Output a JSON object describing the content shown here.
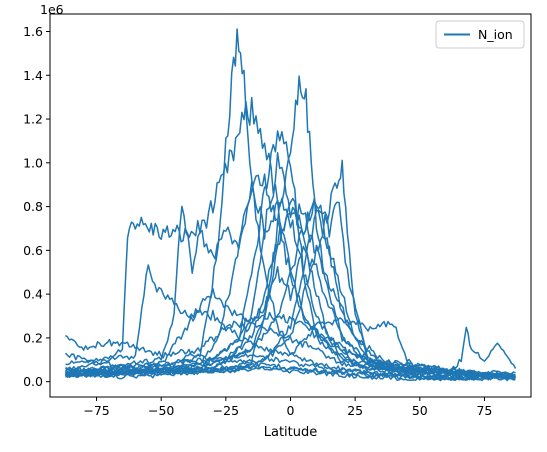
{
  "chart_data": {
    "type": "line",
    "xlabel": "Latitude",
    "ylabel": "",
    "y_offset_label": "1e6",
    "xlim": [
      -93,
      93
    ],
    "ylim": [
      -70000,
      1680000
    ],
    "xticks": [
      -75,
      -50,
      -25,
      0,
      25,
      50,
      75
    ],
    "xtick_labels": [
      "−75",
      "−50",
      "−25",
      "0",
      "25",
      "50",
      "75"
    ],
    "yticks": [
      0,
      200000,
      400000,
      600000,
      800000,
      1000000,
      1200000,
      1400000,
      1600000
    ],
    "ytick_labels": [
      "0.0",
      "0.2",
      "0.4",
      "0.6",
      "0.8",
      "1.0",
      "1.2",
      "1.4",
      "1.6"
    ],
    "grid": false,
    "legend_position": "upper right",
    "series": [
      {
        "name": "N_ion",
        "color": "#1f77b4",
        "traces": [
          {
            "x": [
              -87,
              -75,
              -60,
              -45,
              -35,
              -28,
              -25,
              -22,
              -20,
              -18,
              -15,
              -10,
              -5,
              0,
              10,
              20,
              30,
              50,
              70,
              87
            ],
            "y": [
              50000,
              45000,
              50000,
              60000,
              120000,
              600000,
              1100000,
              1450000,
              1580000,
              1400000,
              900000,
              500000,
              250000,
              120000,
              80000,
              60000,
              40000,
              20000,
              15000,
              20000
            ]
          },
          {
            "x": [
              -87,
              -75,
              -65,
              -63,
              -60,
              -50,
              -40,
              -35,
              -30,
              -22,
              -18,
              -15,
              -10,
              -5,
              0,
              5,
              10,
              20,
              30,
              45,
              87
            ],
            "y": [
              60000,
              80000,
              150000,
              700000,
              730000,
              680000,
              670000,
              700000,
              800000,
              1050000,
              1200000,
              1230000,
              1100000,
              800000,
              500000,
              300000,
              200000,
              150000,
              100000,
              50000,
              30000
            ]
          },
          {
            "x": [
              -87,
              -60,
              -45,
              -30,
              -20,
              -15,
              -12,
              -10,
              -5,
              0,
              5,
              10,
              20,
              30,
              50,
              87
            ],
            "y": [
              40000,
              50000,
              60000,
              100000,
              200000,
              500000,
              700000,
              850000,
              1150000,
              1000000,
              500000,
              200000,
              100000,
              60000,
              30000,
              20000
            ]
          },
          {
            "x": [
              -87,
              -50,
              -30,
              -15,
              -10,
              -5,
              0,
              2,
              4,
              6,
              8,
              10,
              15,
              20,
              30,
              40,
              87
            ],
            "y": [
              40000,
              50000,
              80000,
              150000,
              300000,
              700000,
              1100000,
              1250000,
              1380000,
              1300000,
              1000000,
              700000,
              400000,
              200000,
              100000,
              50000,
              20000
            ]
          },
          {
            "x": [
              -87,
              -40,
              -20,
              -10,
              0,
              5,
              10,
              15,
              18,
              20,
              22,
              25,
              30,
              50,
              87
            ],
            "y": [
              30000,
              40000,
              60000,
              100000,
              200000,
              400000,
              600000,
              800000,
              920000,
              950000,
              700000,
              300000,
              100000,
              40000,
              20000
            ]
          },
          {
            "x": [
              -87,
              -60,
              -55,
              -50,
              -45,
              -40,
              -35,
              -30,
              -25,
              -20,
              -10,
              0,
              10,
              20,
              30,
              40,
              45,
              50,
              87
            ],
            "y": [
              80000,
              120000,
              520000,
              400000,
              350000,
              300000,
              320000,
              300000,
              250000,
              200000,
              150000,
              120000,
              250000,
              280000,
              250000,
              260000,
              100000,
              50000,
              30000
            ]
          },
          {
            "x": [
              -87,
              -50,
              -45,
              -42,
              -38,
              -35,
              -30,
              -25,
              -20,
              -15,
              -10,
              -5,
              0,
              5,
              10,
              15,
              20,
              30,
              87
            ],
            "y": [
              40000,
              100000,
              300000,
              830000,
              500000,
              700000,
              550000,
              700000,
              600000,
              900000,
              700000,
              1000000,
              800000,
              700000,
              850000,
              600000,
              300000,
              100000,
              20000
            ]
          },
          {
            "x": [
              -87,
              -40,
              -25,
              -15,
              -10,
              -5,
              0,
              5,
              10,
              15,
              25,
              40,
              87
            ],
            "y": [
              30000,
              50000,
              100000,
              200000,
              400000,
              650000,
              800000,
              750000,
              600000,
              450000,
              200000,
              60000,
              20000
            ]
          },
          {
            "x": [
              -87,
              -30,
              -15,
              -5,
              0,
              5,
              10,
              15,
              20,
              25,
              35,
              87
            ],
            "y": [
              30000,
              60000,
              150000,
              300000,
              500000,
              700000,
              800000,
              600000,
              400000,
              200000,
              80000,
              20000
            ]
          },
          {
            "x": [
              -87,
              -35,
              -20,
              -10,
              -5,
              0,
              5,
              10,
              20,
              30,
              45,
              87
            ],
            "y": [
              30000,
              60000,
              200000,
              350000,
              500000,
              400000,
              600000,
              500000,
              200000,
              80000,
              40000,
              20000
            ]
          },
          {
            "x": [
              -87,
              -45,
              -35,
              -25,
              -15,
              -5,
              5,
              15,
              25,
              35,
              87
            ],
            "y": [
              40000,
              80000,
              150000,
              250000,
              280000,
              300000,
              260000,
              200000,
              120000,
              60000,
              20000
            ]
          },
          {
            "x": [
              -87,
              -65,
              -55,
              -45,
              -35,
              -25,
              -15,
              -5,
              5,
              15,
              25,
              35,
              45,
              55,
              65,
              87
            ],
            "y": [
              60000,
              40000,
              70000,
              90000,
              100000,
              110000,
              120000,
              100000,
              80000,
              60000,
              50000,
              35000,
              25000,
              20000,
              15000,
              30000
            ]
          },
          {
            "x": [
              -87,
              -60,
              -40,
              -20,
              0,
              20,
              40,
              60,
              66,
              68,
              70,
              75,
              80,
              87
            ],
            "y": [
              120000,
              60000,
              50000,
              70000,
              60000,
              40000,
              30000,
              20000,
              100000,
              240000,
              150000,
              100000,
              180000,
              60000
            ]
          },
          {
            "x": [
              -87,
              -70,
              -50,
              -30,
              -10,
              10,
              30,
              50,
              70,
              87
            ],
            "y": [
              30000,
              20000,
              30000,
              50000,
              60000,
              40000,
              20000,
              10000,
              10000,
              10000
            ]
          },
          {
            "x": [
              -87,
              -80,
              -70,
              -60,
              -50,
              -40,
              -30,
              -20,
              -10,
              0,
              10,
              20,
              30,
              40,
              50,
              60,
              70,
              80,
              87
            ],
            "y": [
              200000,
              150000,
              180000,
              160000,
              120000,
              140000,
              100000,
              90000,
              80000,
              60000,
              50000,
              40000,
              30000,
              25000,
              20000,
              15000,
              20000,
              50000,
              40000
            ]
          },
          {
            "x": [
              -87,
              -50,
              -40,
              -30,
              -25,
              -20,
              -10,
              0,
              10,
              20,
              87
            ],
            "y": [
              50000,
              80000,
              250000,
              420000,
              350000,
              300000,
              250000,
              200000,
              150000,
              80000,
              20000
            ]
          },
          {
            "x": [
              -87,
              -30,
              -20,
              -15,
              -10,
              -5,
              0,
              5,
              10,
              20,
              87
            ],
            "y": [
              30000,
              60000,
              150000,
              300000,
              700000,
              800000,
              750000,
              500000,
              300000,
              100000,
              20000
            ]
          },
          {
            "x": [
              -87,
              -25,
              -15,
              -10,
              -5,
              0,
              5,
              10,
              15,
              25,
              87
            ],
            "y": [
              30000,
              50000,
              100000,
              300000,
              600000,
              850000,
              650000,
              400000,
              200000,
              80000,
              20000
            ]
          },
          {
            "x": [
              -87,
              -20,
              -10,
              0,
              5,
              10,
              15,
              18,
              22,
              30,
              87
            ],
            "y": [
              30000,
              50000,
              100000,
              250000,
              500000,
              800000,
              700000,
              850000,
              500000,
              100000,
              20000
            ]
          },
          {
            "x": [
              -87,
              -35,
              -28,
              -22,
              -15,
              -10,
              -5,
              0,
              5,
              15,
              30,
              87
            ],
            "y": [
              40000,
              80000,
              200000,
              500000,
              900000,
              950000,
              700000,
              500000,
              300000,
              150000,
              60000,
              20000
            ]
          }
        ]
      }
    ]
  }
}
